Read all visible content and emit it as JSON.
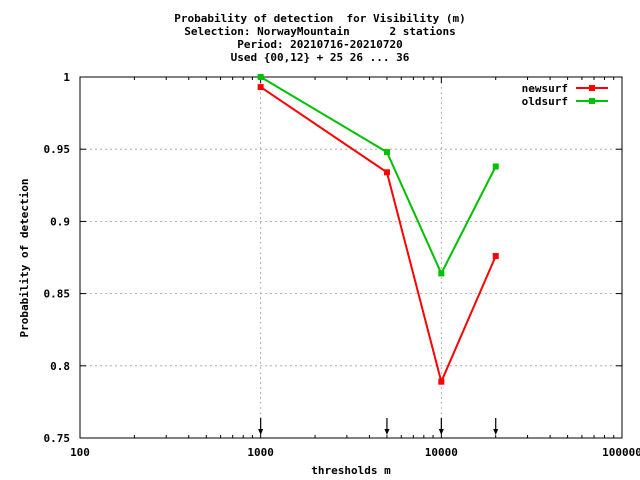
{
  "chart_data": {
    "type": "line",
    "title_lines": [
      "Probability of detection  for Visibility (m)",
      "Selection: NorwayMountain      2 stations",
      "Period: 20210716-20210720",
      "Used {00,12} + 25 26 ... 36"
    ],
    "xlabel": "thresholds m",
    "ylabel": "Probability of detection",
    "x_scale": "log",
    "xlim": [
      100,
      100000
    ],
    "ylim": [
      0.75,
      1.0
    ],
    "x_ticks": [
      100,
      1000,
      10000,
      100000
    ],
    "x_tick_labels": [
      "100",
      "1000",
      "10000",
      "100000"
    ],
    "y_ticks": [
      0.75,
      0.8,
      0.85,
      0.9,
      0.95,
      1.0
    ],
    "y_tick_labels": [
      "0.75",
      "0.8",
      "0.85",
      "0.9",
      "0.95",
      "1"
    ],
    "grid": true,
    "legend_position": "top-right",
    "threshold_markers": [
      1000,
      5000,
      10000,
      20000
    ],
    "series": [
      {
        "name": "newsurf",
        "color": "#ff0000",
        "x": [
          1000,
          5000,
          10000,
          20000
        ],
        "y": [
          0.993,
          0.934,
          0.789,
          0.876
        ]
      },
      {
        "name": "oldsurf",
        "color": "#00c000",
        "x": [
          1000,
          5000,
          10000,
          20000
        ],
        "y": [
          1.0,
          0.948,
          0.864,
          0.938
        ]
      }
    ]
  }
}
